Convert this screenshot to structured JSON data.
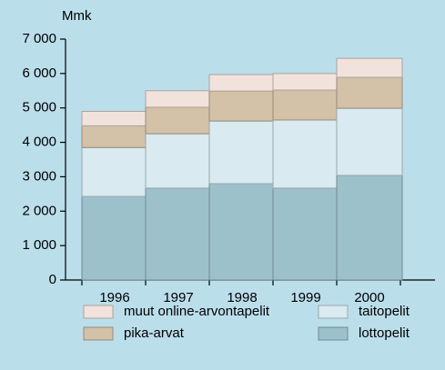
{
  "chart_data": {
    "type": "stacked_bar",
    "y_label": "Mmk",
    "categories": [
      "1996",
      "1997",
      "1998",
      "1999",
      "2000"
    ],
    "series": [
      {
        "name": "lottopelit",
        "color": "#9dc1cb",
        "values": [
          2430,
          2670,
          2800,
          2670,
          3040
        ]
      },
      {
        "name": "taitopelit",
        "color": "#d9eaf0",
        "values": [
          1420,
          1580,
          1820,
          1980,
          1950
        ]
      },
      {
        "name": "pika-arvat",
        "color": "#d3c1a8",
        "values": [
          630,
          770,
          870,
          870,
          900
        ]
      },
      {
        "name": "muut online-arvontapelit",
        "color": "#f1e2dc",
        "values": [
          420,
          480,
          480,
          480,
          550
        ]
      }
    ],
    "ylim": [
      0,
      7000
    ],
    "yticks": [
      0,
      {
        "value": 1000,
        "label": "1 000"
      },
      {
        "value": 2000,
        "label": "2 000"
      },
      {
        "value": 3000,
        "label": "3 000"
      },
      {
        "value": 4000,
        "label": "4 000"
      },
      {
        "value": 5000,
        "label": "5 000"
      },
      {
        "value": 6000,
        "label": "6 000"
      },
      {
        "value": 7000,
        "label": "7 000"
      }
    ]
  }
}
